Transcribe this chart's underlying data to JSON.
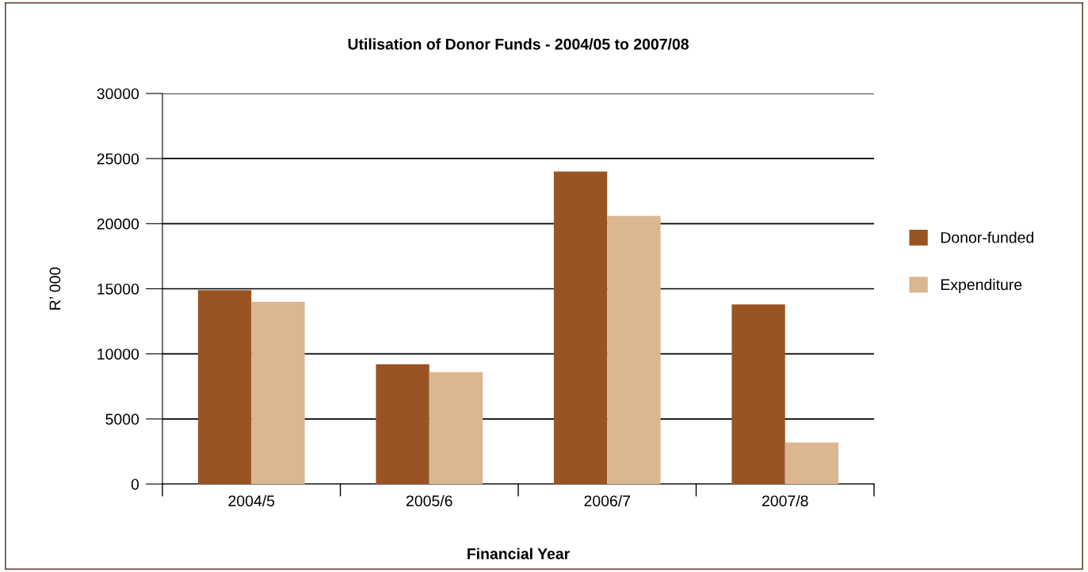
{
  "chart_data": {
    "type": "bar",
    "title": "Utilisation of Donor Funds - 2004/05 to 2007/08",
    "xlabel": "Financial Year",
    "ylabel": "R’ 000",
    "categories": [
      "2004/5",
      "2005/6",
      "2006/7",
      "2007/8"
    ],
    "series": [
      {
        "name": "Donor-funded",
        "color": "#9a5424",
        "values": [
          14900,
          9200,
          24000,
          13800
        ]
      },
      {
        "name": "Expenditure",
        "color": "#dcb591",
        "values": [
          14000,
          8600,
          20600,
          3200
        ]
      }
    ],
    "ylim": [
      0,
      30000
    ],
    "yticks": [
      0,
      5000,
      10000,
      15000,
      20000,
      25000,
      30000
    ],
    "grid": "y",
    "legend": "right"
  }
}
